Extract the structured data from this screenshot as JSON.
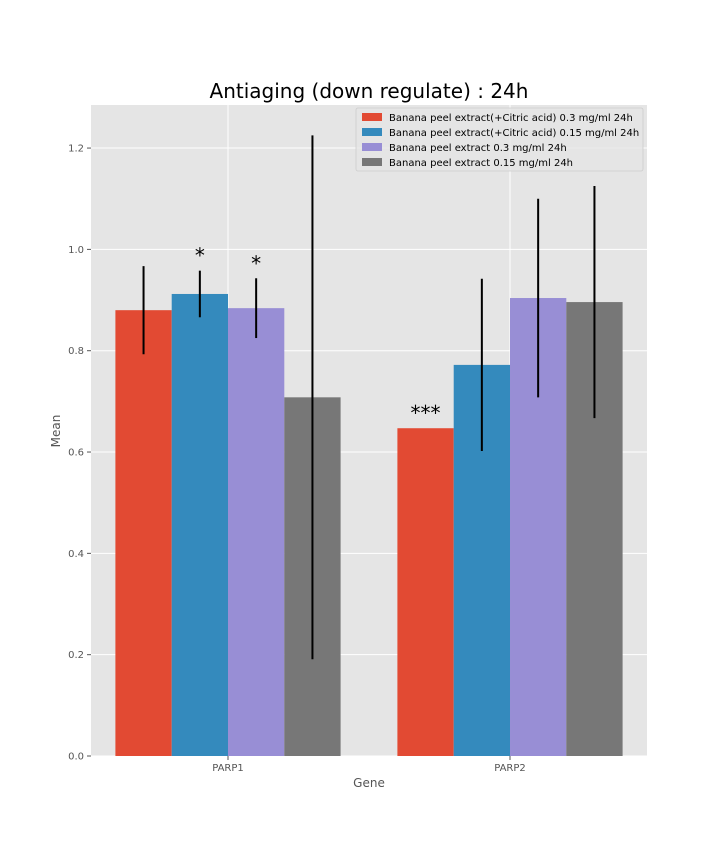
{
  "chart_data": {
    "type": "bar",
    "title": "Antiaging (down regulate) : 24h",
    "xlabel": "Gene",
    "ylabel": "Mean",
    "categories": [
      "PARP1",
      "PARP2"
    ],
    "ylim": [
      0,
      1.285
    ],
    "yticks": [
      "0.0",
      "0.2",
      "0.4",
      "0.6",
      "0.8",
      "1.0",
      "1.2"
    ],
    "grid": true,
    "legend_position": "top-right",
    "series": [
      {
        "name": "Banana peel extract(+Citric acid) 0.3 mg/ml 24h",
        "color": "#E24A33",
        "values": [
          0.88,
          0.647
        ],
        "errors": [
          0.087,
          null
        ],
        "labels": [
          "",
          "***"
        ]
      },
      {
        "name": "Banana peel extract(+Citric acid) 0.15 mg/ml 24h",
        "color": "#348ABD",
        "values": [
          0.912,
          0.772
        ],
        "errors": [
          0.046,
          0.17
        ],
        "labels": [
          "*",
          ""
        ]
      },
      {
        "name": "Banana peel extract 0.3 mg/ml 24h",
        "color": "#988ED5",
        "values": [
          0.884,
          0.904
        ],
        "errors": [
          0.059,
          0.196
        ],
        "labels": [
          "*",
          ""
        ]
      },
      {
        "name": "Banana peel extract 0.15 mg/ml 24h",
        "color": "#777777",
        "values": [
          0.708,
          0.896
        ],
        "errors": [
          0.517,
          0.229
        ],
        "labels": [
          "",
          ""
        ]
      }
    ]
  }
}
